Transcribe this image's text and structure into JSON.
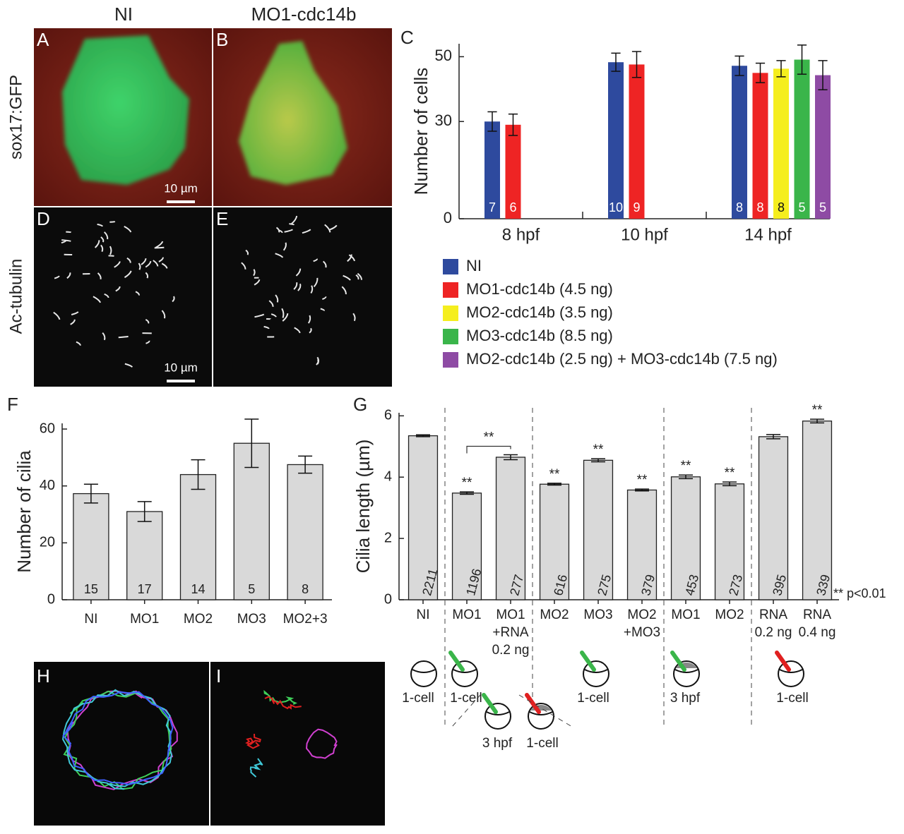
{
  "panels": {
    "labels": [
      "A",
      "B",
      "C",
      "D",
      "E",
      "F",
      "G",
      "H",
      "I"
    ],
    "column_titles": [
      "NI",
      "MO1-cdc14b"
    ],
    "row_titles": [
      "sox17:GFP",
      "Ac-tubulin"
    ],
    "scale_bars": [
      "10 µm",
      "10 µm"
    ]
  },
  "chart_data": [
    {
      "type": "bar",
      "ylabel": "Number of cells",
      "categories": [
        "8 hpf",
        "10 hpf",
        "14 hpf"
      ],
      "ylim": [
        0,
        54
      ],
      "yticks": [
        0,
        30,
        50
      ],
      "series": [
        {
          "name": "NI",
          "color": "#2e4a9e",
          "values": [
            30,
            48.3,
            47.2
          ],
          "errors": [
            3,
            2.8,
            3
          ],
          "n": [
            7,
            10,
            8
          ]
        },
        {
          "name": "MO1-cdc14b (4.5 ng)",
          "color": "#ee2424",
          "values": [
            29,
            47.6,
            45
          ],
          "errors": [
            3.3,
            4,
            3
          ],
          "n": [
            6,
            9,
            8
          ]
        },
        {
          "name": "MO2-cdc14b (3.5 ng)",
          "color": "#f5ee1e",
          "values": [
            null,
            null,
            46.3
          ],
          "errors": [
            null,
            null,
            2.5
          ],
          "n": [
            null,
            null,
            8
          ]
        },
        {
          "name": "MO3-cdc14b (8.5 ng)",
          "color": "#3ab54a",
          "values": [
            null,
            null,
            49.1
          ],
          "errors": [
            null,
            null,
            4.5
          ],
          "n": [
            null,
            null,
            5
          ]
        },
        {
          "name": "MO2-cdc14b (2.5 ng) + MO3-cdc14b (7.5 ng)",
          "color": "#8e4ba4",
          "values": [
            null,
            null,
            44.3
          ],
          "errors": [
            null,
            null,
            4.5
          ],
          "n": [
            null,
            null,
            5
          ]
        }
      ]
    },
    {
      "type": "bar",
      "ylabel": "Number of cilia",
      "categories": [
        "NI",
        "MO1",
        "MO2",
        "MO3",
        "MO2+3"
      ],
      "values": [
        37.3,
        31,
        44,
        55,
        47.5
      ],
      "errors": [
        3.3,
        3.5,
        5.2,
        8.5,
        3
      ],
      "n": [
        15,
        17,
        14,
        5,
        8
      ],
      "color": "#d9d9d9",
      "ylim": [
        0,
        62
      ],
      "yticks": [
        0,
        20,
        40,
        60
      ]
    },
    {
      "type": "bar",
      "ylabel": "Cilia length (µm)",
      "categories": [
        [
          "NI"
        ],
        [
          "MO1"
        ],
        [
          "MO1",
          "+RNA",
          "0.2 ng"
        ],
        [
          "MO2"
        ],
        [
          "MO3"
        ],
        [
          "MO2",
          "+MO3"
        ],
        [
          "MO1"
        ],
        [
          "MO2"
        ],
        [
          "RNA",
          "0.2 ng"
        ],
        [
          "RNA",
          "0.4 ng"
        ]
      ],
      "values": [
        5.35,
        3.48,
        4.65,
        3.77,
        4.55,
        3.58,
        4.01,
        3.78,
        5.32,
        5.83
      ],
      "errors": [
        0.03,
        0.04,
        0.08,
        0.03,
        0.05,
        0.03,
        0.06,
        0.06,
        0.07,
        0.06
      ],
      "n": [
        2211,
        1196,
        277,
        616,
        275,
        379,
        453,
        273,
        395,
        339
      ],
      "significance": [
        null,
        "**",
        null,
        "**",
        "**",
        "**",
        "**",
        "**",
        null,
        "**"
      ],
      "bracket_label": "**",
      "annotation": "** p<0.01",
      "color": "#d9d9d9",
      "ylim": [
        0,
        6.1
      ],
      "yticks": [
        0,
        2,
        4,
        6
      ]
    }
  ],
  "diagram_labels": [
    "1-cell",
    "1-cell",
    "1-cell",
    "3 hpf",
    "1-cell",
    "3 hpf",
    "1-cell"
  ]
}
